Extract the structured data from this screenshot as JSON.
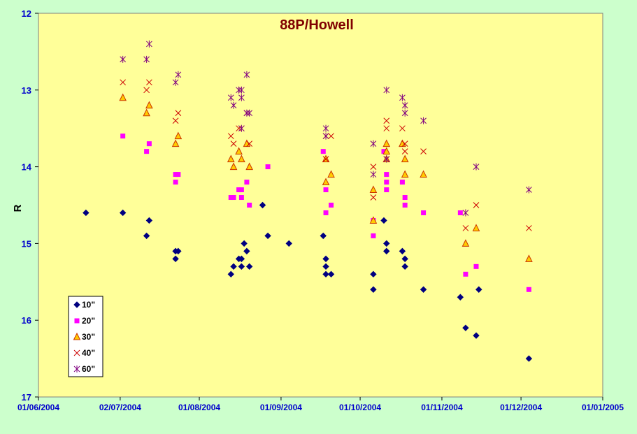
{
  "chart_data": {
    "type": "scatter",
    "title": "88P/Howell",
    "xlabel": "",
    "ylabel": "R",
    "x_is_date": true,
    "xlim": [
      "2004-06-01",
      "2005-01-01"
    ],
    "ylim": [
      17,
      12
    ],
    "y_inverted": true,
    "x_ticks": [
      "01/06/2004",
      "02/07/2004",
      "01/08/2004",
      "01/09/2004",
      "01/10/2004",
      "01/11/2004",
      "01/12/2004",
      "01/01/2005"
    ],
    "x_tick_dates": [
      "2004-06-01",
      "2004-07-02",
      "2004-08-01",
      "2004-09-01",
      "2004-10-01",
      "2004-11-01",
      "2004-12-01",
      "2005-01-01"
    ],
    "y_ticks": [
      "12",
      "13",
      "14",
      "15",
      "16",
      "17"
    ],
    "y_tick_values": [
      12,
      13,
      14,
      15,
      16,
      17
    ],
    "grid": false,
    "legend_position": "bottom-left",
    "colors": {
      "plot_bg": "#ffff99",
      "page_bg": "#ccffcc",
      "title": "#800000",
      "axis_text": "#0000cc",
      "s10": "#000080",
      "s20": "#ff00ff",
      "s30_fill": "#ffcc00",
      "s30_stroke": "#cc3300",
      "s40": "#cc0000",
      "s60": "#800080"
    },
    "series": [
      {
        "name": "10\"",
        "marker": "diamond",
        "points": [
          [
            "2004-06-19",
            14.6
          ],
          [
            "2004-07-03",
            14.6
          ],
          [
            "2004-07-12",
            14.9
          ],
          [
            "2004-07-13",
            14.7
          ],
          [
            "2004-07-23",
            15.2
          ],
          [
            "2004-07-23",
            15.1
          ],
          [
            "2004-07-24",
            15.1
          ],
          [
            "2004-08-13",
            15.4
          ],
          [
            "2004-08-14",
            15.3
          ],
          [
            "2004-08-16",
            15.2
          ],
          [
            "2004-08-17",
            15.3
          ],
          [
            "2004-08-17",
            15.2
          ],
          [
            "2004-08-18",
            15.0
          ],
          [
            "2004-08-19",
            15.1
          ],
          [
            "2004-08-20",
            15.3
          ],
          [
            "2004-08-25",
            14.5
          ],
          [
            "2004-08-27",
            14.9
          ],
          [
            "2004-09-04",
            15.0
          ],
          [
            "2004-09-17",
            14.9
          ],
          [
            "2004-09-18",
            15.2
          ],
          [
            "2004-09-18",
            15.3
          ],
          [
            "2004-09-18",
            15.4
          ],
          [
            "2004-09-20",
            15.4
          ],
          [
            "2004-10-06",
            15.6
          ],
          [
            "2004-10-06",
            15.4
          ],
          [
            "2004-10-10",
            14.7
          ],
          [
            "2004-10-11",
            15.0
          ],
          [
            "2004-10-11",
            15.1
          ],
          [
            "2004-10-17",
            15.1
          ],
          [
            "2004-10-18",
            15.2
          ],
          [
            "2004-10-18",
            15.3
          ],
          [
            "2004-10-25",
            15.6
          ],
          [
            "2004-11-08",
            15.7
          ],
          [
            "2004-11-10",
            16.1
          ],
          [
            "2004-11-14",
            16.2
          ],
          [
            "2004-11-15",
            15.6
          ],
          [
            "2004-12-04",
            16.5
          ]
        ]
      },
      {
        "name": "20\"",
        "marker": "square",
        "points": [
          [
            "2004-07-03",
            13.6
          ],
          [
            "2004-07-12",
            13.8
          ],
          [
            "2004-07-13",
            13.7
          ],
          [
            "2004-07-23",
            14.2
          ],
          [
            "2004-07-23",
            14.1
          ],
          [
            "2004-07-24",
            14.1
          ],
          [
            "2004-08-13",
            14.4
          ],
          [
            "2004-08-14",
            14.4
          ],
          [
            "2004-08-16",
            14.3
          ],
          [
            "2004-08-17",
            14.4
          ],
          [
            "2004-08-17",
            14.3
          ],
          [
            "2004-08-19",
            14.2
          ],
          [
            "2004-08-20",
            14.5
          ],
          [
            "2004-08-27",
            14.0
          ],
          [
            "2004-09-17",
            13.8
          ],
          [
            "2004-09-18",
            14.3
          ],
          [
            "2004-09-18",
            14.6
          ],
          [
            "2004-09-20",
            14.5
          ],
          [
            "2004-10-06",
            14.9
          ],
          [
            "2004-10-06",
            14.7
          ],
          [
            "2004-10-10",
            13.8
          ],
          [
            "2004-10-11",
            14.3
          ],
          [
            "2004-10-11",
            14.1
          ],
          [
            "2004-10-11",
            14.2
          ],
          [
            "2004-10-17",
            14.2
          ],
          [
            "2004-10-18",
            14.4
          ],
          [
            "2004-10-18",
            14.5
          ],
          [
            "2004-10-25",
            14.6
          ],
          [
            "2004-11-08",
            14.6
          ],
          [
            "2004-11-10",
            15.4
          ],
          [
            "2004-11-14",
            15.3
          ],
          [
            "2004-12-04",
            15.6
          ]
        ]
      },
      {
        "name": "30\"",
        "marker": "triangle",
        "points": [
          [
            "2004-07-03",
            13.1
          ],
          [
            "2004-07-12",
            13.3
          ],
          [
            "2004-07-13",
            13.2
          ],
          [
            "2004-07-23",
            13.7
          ],
          [
            "2004-07-24",
            13.6
          ],
          [
            "2004-08-13",
            13.9
          ],
          [
            "2004-08-14",
            14.0
          ],
          [
            "2004-08-16",
            13.8
          ],
          [
            "2004-08-17",
            13.9
          ],
          [
            "2004-08-19",
            13.7
          ],
          [
            "2004-08-20",
            14.0
          ],
          [
            "2004-09-18",
            14.2
          ],
          [
            "2004-09-18",
            13.9
          ],
          [
            "2004-09-20",
            14.1
          ],
          [
            "2004-10-06",
            14.3
          ],
          [
            "2004-10-06",
            14.7
          ],
          [
            "2004-10-11",
            13.7
          ],
          [
            "2004-10-11",
            13.8
          ],
          [
            "2004-10-11",
            13.9
          ],
          [
            "2004-10-17",
            13.7
          ],
          [
            "2004-10-18",
            13.9
          ],
          [
            "2004-10-18",
            14.1
          ],
          [
            "2004-10-25",
            14.1
          ],
          [
            "2004-11-10",
            15.0
          ],
          [
            "2004-11-14",
            14.8
          ],
          [
            "2004-12-04",
            15.2
          ]
        ]
      },
      {
        "name": "40\"",
        "marker": "x",
        "points": [
          [
            "2004-07-03",
            12.9
          ],
          [
            "2004-07-12",
            13.0
          ],
          [
            "2004-07-13",
            12.9
          ],
          [
            "2004-07-23",
            13.4
          ],
          [
            "2004-07-24",
            13.3
          ],
          [
            "2004-08-13",
            13.6
          ],
          [
            "2004-08-14",
            13.7
          ],
          [
            "2004-08-16",
            13.5
          ],
          [
            "2004-08-17",
            13.5
          ],
          [
            "2004-08-19",
            13.3
          ],
          [
            "2004-08-20",
            13.7
          ],
          [
            "2004-09-18",
            13.6
          ],
          [
            "2004-09-18",
            13.9
          ],
          [
            "2004-09-20",
            13.6
          ],
          [
            "2004-10-06",
            14.0
          ],
          [
            "2004-10-06",
            14.4
          ],
          [
            "2004-10-11",
            13.4
          ],
          [
            "2004-10-11",
            13.9
          ],
          [
            "2004-10-11",
            13.5
          ],
          [
            "2004-10-17",
            13.5
          ],
          [
            "2004-10-18",
            13.7
          ],
          [
            "2004-10-18",
            13.8
          ],
          [
            "2004-10-25",
            13.8
          ],
          [
            "2004-11-10",
            14.8
          ],
          [
            "2004-11-14",
            14.5
          ],
          [
            "2004-12-04",
            14.8
          ]
        ]
      },
      {
        "name": "60\"",
        "marker": "star",
        "points": [
          [
            "2004-07-03",
            12.6
          ],
          [
            "2004-07-12",
            12.6
          ],
          [
            "2004-07-13",
            12.4
          ],
          [
            "2004-07-23",
            12.9
          ],
          [
            "2004-07-24",
            12.8
          ],
          [
            "2004-08-13",
            13.1
          ],
          [
            "2004-08-14",
            13.2
          ],
          [
            "2004-08-16",
            13.0
          ],
          [
            "2004-08-17",
            13.0
          ],
          [
            "2004-08-17",
            13.1
          ],
          [
            "2004-08-17",
            13.5
          ],
          [
            "2004-08-19",
            12.8
          ],
          [
            "2004-08-19",
            13.3
          ],
          [
            "2004-08-20",
            13.3
          ],
          [
            "2004-09-18",
            13.5
          ],
          [
            "2004-09-18",
            13.6
          ],
          [
            "2004-10-06",
            13.7
          ],
          [
            "2004-10-06",
            14.1
          ],
          [
            "2004-10-11",
            13.0
          ],
          [
            "2004-10-11",
            13.9
          ],
          [
            "2004-10-17",
            13.1
          ],
          [
            "2004-10-18",
            13.2
          ],
          [
            "2004-10-18",
            13.3
          ],
          [
            "2004-10-25",
            13.4
          ],
          [
            "2004-11-10",
            14.6
          ],
          [
            "2004-11-14",
            14.0
          ],
          [
            "2004-12-04",
            14.3
          ]
        ]
      }
    ]
  }
}
